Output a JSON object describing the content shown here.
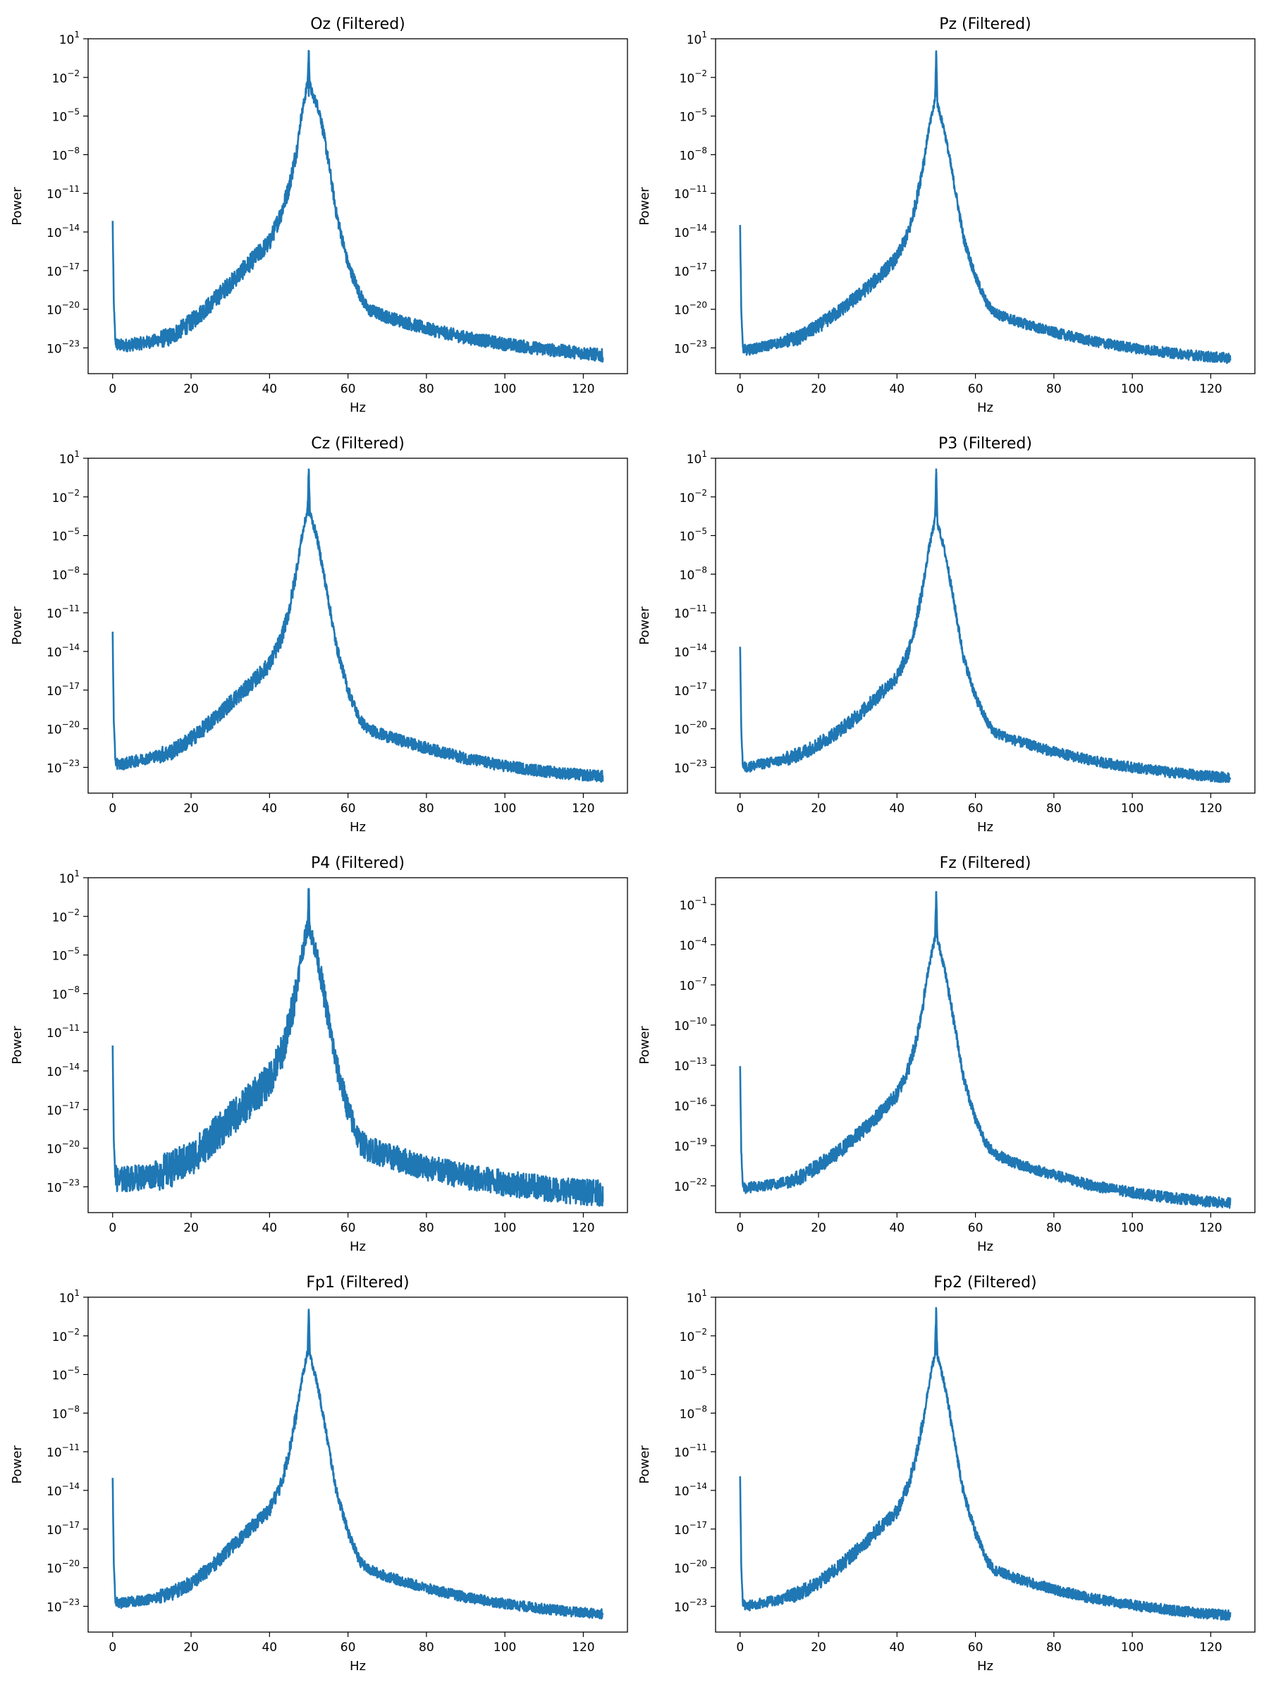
{
  "chart_data": [
    {
      "type": "line",
      "title": "Oz (Filtered)",
      "xlabel": "Hz",
      "ylabel": "Power",
      "yscale": "log",
      "xlim": [
        -6.25,
        131.25
      ],
      "ylim_exponent": [
        -25,
        1
      ],
      "xticks": [
        "0",
        "20",
        "40",
        "60",
        "80",
        "100",
        "120"
      ],
      "yticks": [
        {
          "base": "10",
          "exp": "1"
        },
        {
          "base": "10",
          "exp": "−2"
        },
        {
          "base": "10",
          "exp": "−5"
        },
        {
          "base": "10",
          "exp": "−8"
        },
        {
          "base": "10",
          "exp": "−11"
        },
        {
          "base": "10",
          "exp": "−14"
        },
        {
          "base": "10",
          "exp": "−17"
        },
        {
          "base": "10",
          "exp": "−20"
        },
        {
          "base": "10",
          "exp": "−23"
        }
      ],
      "series": [
        {
          "color": "#1f77b4",
          "x": [
            0,
            0.3,
            0.7,
            1.5,
            3,
            6,
            10,
            15,
            20,
            25,
            30,
            35,
            40,
            43,
            45,
            47,
            48,
            49,
            49.7,
            50,
            50.3,
            51,
            52,
            53,
            55,
            57,
            60,
            63,
            65,
            70,
            80,
            90,
            100,
            110,
            120,
            125
          ],
          "log10": [
            -13.2,
            -19.5,
            -22.6,
            -22.8,
            -22.8,
            -22.7,
            -22.5,
            -22.1,
            -21.0,
            -19.6,
            -18.0,
            -16.4,
            -14.8,
            -12.5,
            -10.5,
            -7.5,
            -5.2,
            -3.6,
            -2.4,
            0.1,
            -2.6,
            -3.4,
            -4.0,
            -5.0,
            -8.5,
            -12.5,
            -16.5,
            -18.8,
            -20.0,
            -20.6,
            -21.5,
            -22.2,
            -22.7,
            -23.1,
            -23.4,
            -23.6
          ],
          "noise": 0.5
        }
      ]
    },
    {
      "type": "line",
      "title": "Pz (Filtered)",
      "xlabel": "Hz",
      "ylabel": "Power",
      "yscale": "log",
      "xlim": [
        -6.25,
        131.25
      ],
      "ylim_exponent": [
        -25,
        1
      ],
      "xticks": [
        "0",
        "20",
        "40",
        "60",
        "80",
        "100",
        "120"
      ],
      "yticks": [
        {
          "base": "10",
          "exp": "1"
        },
        {
          "base": "10",
          "exp": "−2"
        },
        {
          "base": "10",
          "exp": "−5"
        },
        {
          "base": "10",
          "exp": "−8"
        },
        {
          "base": "10",
          "exp": "−11"
        },
        {
          "base": "10",
          "exp": "−14"
        },
        {
          "base": "10",
          "exp": "−17"
        },
        {
          "base": "10",
          "exp": "−20"
        },
        {
          "base": "10",
          "exp": "−23"
        }
      ],
      "series": [
        {
          "color": "#1f77b4",
          "x": [
            0,
            0.3,
            0.7,
            1.5,
            3,
            6,
            10,
            15,
            20,
            25,
            30,
            35,
            40,
            43,
            45,
            47,
            48,
            49,
            49.7,
            50,
            50.3,
            51,
            52,
            53,
            55,
            57,
            60,
            63,
            65,
            70,
            80,
            90,
            100,
            110,
            120,
            125
          ],
          "log10": [
            -13.5,
            -20.0,
            -23.0,
            -23.2,
            -23.1,
            -22.9,
            -22.6,
            -22.2,
            -21.3,
            -20.2,
            -19.0,
            -17.6,
            -16.0,
            -14.0,
            -11.5,
            -8.2,
            -6.2,
            -4.8,
            -3.8,
            0.1,
            -4.0,
            -4.9,
            -6.0,
            -7.6,
            -11.0,
            -14.5,
            -17.5,
            -19.6,
            -20.3,
            -20.9,
            -21.8,
            -22.5,
            -23.0,
            -23.4,
            -23.7,
            -23.8
          ],
          "noise": 0.4
        }
      ]
    },
    {
      "type": "line",
      "title": "Cz (Filtered)",
      "xlabel": "Hz",
      "ylabel": "Power",
      "yscale": "log",
      "xlim": [
        -6.25,
        131.25
      ],
      "ylim_exponent": [
        -25,
        1
      ],
      "xticks": [
        "0",
        "20",
        "40",
        "60",
        "80",
        "100",
        "120"
      ],
      "yticks": [
        {
          "base": "10",
          "exp": "1"
        },
        {
          "base": "10",
          "exp": "−2"
        },
        {
          "base": "10",
          "exp": "−5"
        },
        {
          "base": "10",
          "exp": "−8"
        },
        {
          "base": "10",
          "exp": "−11"
        },
        {
          "base": "10",
          "exp": "−14"
        },
        {
          "base": "10",
          "exp": "−17"
        },
        {
          "base": "10",
          "exp": "−20"
        },
        {
          "base": "10",
          "exp": "−23"
        }
      ],
      "series": [
        {
          "color": "#1f77b4",
          "x": [
            0,
            0.3,
            0.7,
            1.5,
            3,
            6,
            10,
            15,
            20,
            25,
            30,
            35,
            40,
            43,
            45,
            47,
            48,
            49,
            49.7,
            50,
            50.3,
            51,
            52,
            53,
            55,
            57,
            60,
            63,
            65,
            70,
            80,
            90,
            100,
            110,
            120,
            125
          ],
          "log10": [
            -12.5,
            -19.5,
            -22.5,
            -22.8,
            -22.7,
            -22.5,
            -22.2,
            -21.8,
            -20.8,
            -19.5,
            -18.0,
            -16.6,
            -15.0,
            -13.0,
            -10.8,
            -7.5,
            -5.5,
            -4.0,
            -3.0,
            0.2,
            -3.2,
            -4.0,
            -5.0,
            -6.6,
            -10.0,
            -13.5,
            -17.0,
            -19.3,
            -20.0,
            -20.6,
            -21.5,
            -22.3,
            -22.9,
            -23.3,
            -23.6,
            -23.7
          ],
          "noise": 0.45
        }
      ]
    },
    {
      "type": "line",
      "title": "P3 (Filtered)",
      "xlabel": "Hz",
      "ylabel": "Power",
      "yscale": "log",
      "xlim": [
        -6.25,
        131.25
      ],
      "ylim_exponent": [
        -25,
        1
      ],
      "xticks": [
        "0",
        "20",
        "40",
        "60",
        "80",
        "100",
        "120"
      ],
      "yticks": [
        {
          "base": "10",
          "exp": "1"
        },
        {
          "base": "10",
          "exp": "−2"
        },
        {
          "base": "10",
          "exp": "−5"
        },
        {
          "base": "10",
          "exp": "−8"
        },
        {
          "base": "10",
          "exp": "−11"
        },
        {
          "base": "10",
          "exp": "−14"
        },
        {
          "base": "10",
          "exp": "−17"
        },
        {
          "base": "10",
          "exp": "−20"
        },
        {
          "base": "10",
          "exp": "−23"
        }
      ],
      "series": [
        {
          "color": "#1f77b4",
          "x": [
            0,
            0.3,
            0.7,
            1.5,
            3,
            6,
            10,
            15,
            20,
            25,
            30,
            35,
            40,
            43,
            45,
            47,
            48,
            49,
            49.7,
            50,
            50.3,
            51,
            52,
            53,
            55,
            57,
            60,
            63,
            65,
            70,
            80,
            90,
            100,
            110,
            120,
            125
          ],
          "log10": [
            -13.5,
            -20.0,
            -22.9,
            -23.0,
            -22.9,
            -22.7,
            -22.5,
            -22.0,
            -21.2,
            -20.2,
            -19.0,
            -17.5,
            -16.0,
            -14.0,
            -11.5,
            -8.3,
            -6.2,
            -4.8,
            -3.8,
            0.2,
            -4.0,
            -4.8,
            -6.0,
            -7.5,
            -11.0,
            -14.5,
            -17.5,
            -19.5,
            -20.3,
            -20.9,
            -21.8,
            -22.5,
            -23.0,
            -23.4,
            -23.7,
            -23.8
          ],
          "noise": 0.4
        }
      ]
    },
    {
      "type": "line",
      "title": "P4 (Filtered)",
      "xlabel": "Hz",
      "ylabel": "Power",
      "yscale": "log",
      "xlim": [
        -6.25,
        131.25
      ],
      "ylim_exponent": [
        -25,
        1
      ],
      "xticks": [
        "0",
        "20",
        "40",
        "60",
        "80",
        "100",
        "120"
      ],
      "yticks": [
        {
          "base": "10",
          "exp": "1"
        },
        {
          "base": "10",
          "exp": "−2"
        },
        {
          "base": "10",
          "exp": "−5"
        },
        {
          "base": "10",
          "exp": "−8"
        },
        {
          "base": "10",
          "exp": "−11"
        },
        {
          "base": "10",
          "exp": "−14"
        },
        {
          "base": "10",
          "exp": "−17"
        },
        {
          "base": "10",
          "exp": "−20"
        },
        {
          "base": "10",
          "exp": "−23"
        }
      ],
      "series": [
        {
          "color": "#1f77b4",
          "x": [
            0,
            0.3,
            0.7,
            1.5,
            3,
            6,
            10,
            15,
            20,
            25,
            30,
            35,
            40,
            43,
            45,
            47,
            48,
            49,
            49.7,
            50,
            50.3,
            51,
            52,
            53,
            55,
            57,
            60,
            63,
            65,
            70,
            80,
            90,
            100,
            110,
            120,
            125
          ],
          "log10": [
            -12.0,
            -19.5,
            -22.3,
            -22.5,
            -22.4,
            -22.3,
            -22.1,
            -21.6,
            -20.8,
            -19.3,
            -17.8,
            -16.3,
            -14.7,
            -12.7,
            -10.5,
            -7.3,
            -5.3,
            -3.8,
            -2.8,
            0.2,
            -3.0,
            -3.8,
            -5.0,
            -6.5,
            -10.0,
            -13.5,
            -17.0,
            -19.5,
            -20.0,
            -20.6,
            -21.5,
            -22.2,
            -22.7,
            -23.1,
            -23.4,
            -23.5
          ],
          "noise": 1.0
        }
      ]
    },
    {
      "type": "line",
      "title": "Fz (Filtered)",
      "xlabel": "Hz",
      "ylabel": "Power",
      "yscale": "log",
      "xlim": [
        -6.25,
        131.25
      ],
      "ylim_exponent": [
        -24,
        1
      ],
      "xticks": [
        "0",
        "20",
        "40",
        "60",
        "80",
        "100",
        "120"
      ],
      "yticks": [
        {
          "base": "10",
          "exp": "−1"
        },
        {
          "base": "10",
          "exp": "−4"
        },
        {
          "base": "10",
          "exp": "−7"
        },
        {
          "base": "10",
          "exp": "−10"
        },
        {
          "base": "10",
          "exp": "−13"
        },
        {
          "base": "10",
          "exp": "−16"
        },
        {
          "base": "10",
          "exp": "−19"
        },
        {
          "base": "10",
          "exp": "−22"
        }
      ],
      "series": [
        {
          "color": "#1f77b4",
          "x": [
            0,
            0.3,
            0.7,
            1.5,
            3,
            6,
            10,
            15,
            20,
            25,
            30,
            35,
            40,
            43,
            45,
            47,
            48,
            49,
            49.7,
            50,
            50.3,
            51,
            52,
            53,
            55,
            57,
            60,
            63,
            65,
            70,
            80,
            90,
            100,
            110,
            120,
            125
          ],
          "log10": [
            -13.0,
            -19.5,
            -22.0,
            -22.2,
            -22.1,
            -22.0,
            -21.8,
            -21.4,
            -20.5,
            -19.5,
            -18.2,
            -16.8,
            -15.2,
            -13.2,
            -11.0,
            -7.8,
            -5.8,
            -4.4,
            -3.5,
            0.0,
            -3.6,
            -4.4,
            -5.6,
            -7.2,
            -10.5,
            -14.0,
            -17.0,
            -19.0,
            -19.6,
            -20.3,
            -21.2,
            -22.0,
            -22.5,
            -22.9,
            -23.2,
            -23.3
          ],
          "noise": 0.4
        }
      ]
    },
    {
      "type": "line",
      "title": "Fp1 (Filtered)",
      "xlabel": "Hz",
      "ylabel": "Power",
      "yscale": "log",
      "xlim": [
        -6.25,
        131.25
      ],
      "ylim_exponent": [
        -25,
        1
      ],
      "xticks": [
        "0",
        "20",
        "40",
        "60",
        "80",
        "100",
        "120"
      ],
      "yticks": [
        {
          "base": "10",
          "exp": "1"
        },
        {
          "base": "10",
          "exp": "−2"
        },
        {
          "base": "10",
          "exp": "−5"
        },
        {
          "base": "10",
          "exp": "−8"
        },
        {
          "base": "10",
          "exp": "−11"
        },
        {
          "base": "10",
          "exp": "−14"
        },
        {
          "base": "10",
          "exp": "−17"
        },
        {
          "base": "10",
          "exp": "−20"
        },
        {
          "base": "10",
          "exp": "−23"
        }
      ],
      "series": [
        {
          "color": "#1f77b4",
          "x": [
            0,
            0.3,
            0.7,
            1.5,
            3,
            6,
            10,
            15,
            20,
            25,
            30,
            35,
            40,
            43,
            45,
            47,
            48,
            49,
            49.7,
            50,
            50.3,
            51,
            52,
            53,
            55,
            57,
            60,
            63,
            65,
            70,
            80,
            90,
            100,
            110,
            120,
            125
          ],
          "log10": [
            -13.0,
            -19.8,
            -22.6,
            -22.8,
            -22.7,
            -22.6,
            -22.4,
            -22.0,
            -21.2,
            -20.0,
            -18.5,
            -17.0,
            -15.5,
            -13.5,
            -11.0,
            -7.8,
            -5.8,
            -4.3,
            -3.3,
            0.1,
            -3.5,
            -4.3,
            -5.5,
            -7.0,
            -10.5,
            -14.0,
            -17.2,
            -19.5,
            -20.1,
            -20.7,
            -21.6,
            -22.3,
            -22.8,
            -23.2,
            -23.5,
            -23.6
          ],
          "noise": 0.4
        }
      ]
    },
    {
      "type": "line",
      "title": "Fp2 (Filtered)",
      "xlabel": "Hz",
      "ylabel": "Power",
      "yscale": "log",
      "xlim": [
        -6.25,
        131.25
      ],
      "ylim_exponent": [
        -25,
        1
      ],
      "xticks": [
        "0",
        "20",
        "40",
        "60",
        "80",
        "100",
        "120"
      ],
      "yticks": [
        {
          "base": "10",
          "exp": "1"
        },
        {
          "base": "10",
          "exp": "−2"
        },
        {
          "base": "10",
          "exp": "−5"
        },
        {
          "base": "10",
          "exp": "−8"
        },
        {
          "base": "10",
          "exp": "−11"
        },
        {
          "base": "10",
          "exp": "−14"
        },
        {
          "base": "10",
          "exp": "−17"
        },
        {
          "base": "10",
          "exp": "−20"
        },
        {
          "base": "10",
          "exp": "−23"
        }
      ],
      "series": [
        {
          "color": "#1f77b4",
          "x": [
            0,
            0.3,
            0.7,
            1.5,
            3,
            6,
            10,
            15,
            20,
            25,
            30,
            35,
            40,
            43,
            45,
            47,
            48,
            49,
            49.7,
            50,
            50.3,
            51,
            52,
            53,
            55,
            57,
            60,
            63,
            65,
            70,
            80,
            90,
            100,
            110,
            120,
            125
          ],
          "log10": [
            -13.0,
            -19.8,
            -22.8,
            -23.0,
            -22.9,
            -22.7,
            -22.5,
            -22.0,
            -21.2,
            -20.0,
            -18.6,
            -17.1,
            -15.6,
            -13.6,
            -11.2,
            -8.0,
            -6.0,
            -4.4,
            -3.4,
            0.1,
            -3.6,
            -4.4,
            -5.6,
            -7.2,
            -10.8,
            -14.2,
            -17.3,
            -19.5,
            -20.2,
            -20.8,
            -21.7,
            -22.4,
            -22.9,
            -23.3,
            -23.6,
            -23.7
          ],
          "noise": 0.4
        }
      ]
    }
  ]
}
